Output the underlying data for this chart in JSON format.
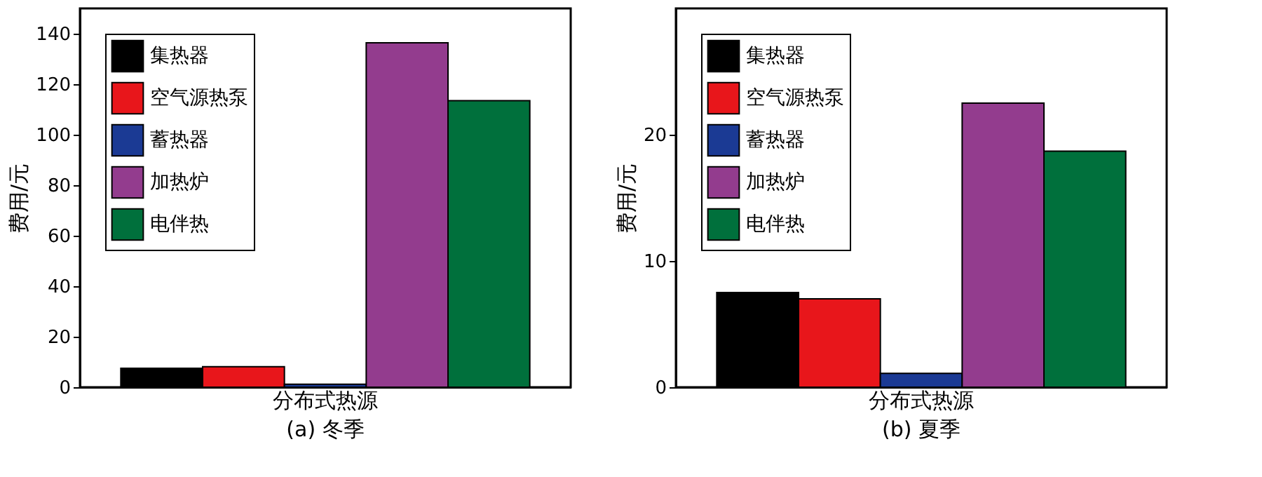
{
  "chart_data": [
    {
      "type": "bar",
      "title": "(a) 冬季",
      "ylabel": "费用/元",
      "categories": [
        "分布式热源"
      ],
      "ylim": [
        0,
        150
      ],
      "yticks": [
        0,
        20,
        40,
        60,
        80,
        100,
        120,
        140
      ],
      "grid": false,
      "legend": "top left",
      "series": [
        {
          "name": "集热器",
          "color": "#000000",
          "values": [
            7.5
          ]
        },
        {
          "name": "空气源热泵",
          "color": "#e8161b",
          "values": [
            8.1
          ]
        },
        {
          "name": "蓄热器",
          "color": "#1b3a94",
          "values": [
            1.2
          ]
        },
        {
          "name": "加热炉",
          "color": "#933c8e",
          "values": [
            136.4
          ]
        },
        {
          "name": "电伴热",
          "color": "#00703c",
          "values": [
            113.5
          ]
        }
      ]
    },
    {
      "type": "bar",
      "title": "(b) 夏季",
      "ylabel": "费用/元",
      "categories": [
        "分布式热源"
      ],
      "ylim": [
        0,
        30
      ],
      "yticks": [
        0,
        10,
        20
      ],
      "grid": false,
      "legend": "top left",
      "series": [
        {
          "name": "集热器",
          "color": "#000000",
          "values": [
            7.5
          ]
        },
        {
          "name": "空气源热泵",
          "color": "#e8161b",
          "values": [
            7.0
          ]
        },
        {
          "name": "蓄热器",
          "color": "#1b3a94",
          "values": [
            1.1
          ]
        },
        {
          "name": "加热炉",
          "color": "#933c8e",
          "values": [
            22.5
          ]
        },
        {
          "name": "电伴热",
          "color": "#00703c",
          "values": [
            18.7
          ]
        }
      ]
    }
  ]
}
